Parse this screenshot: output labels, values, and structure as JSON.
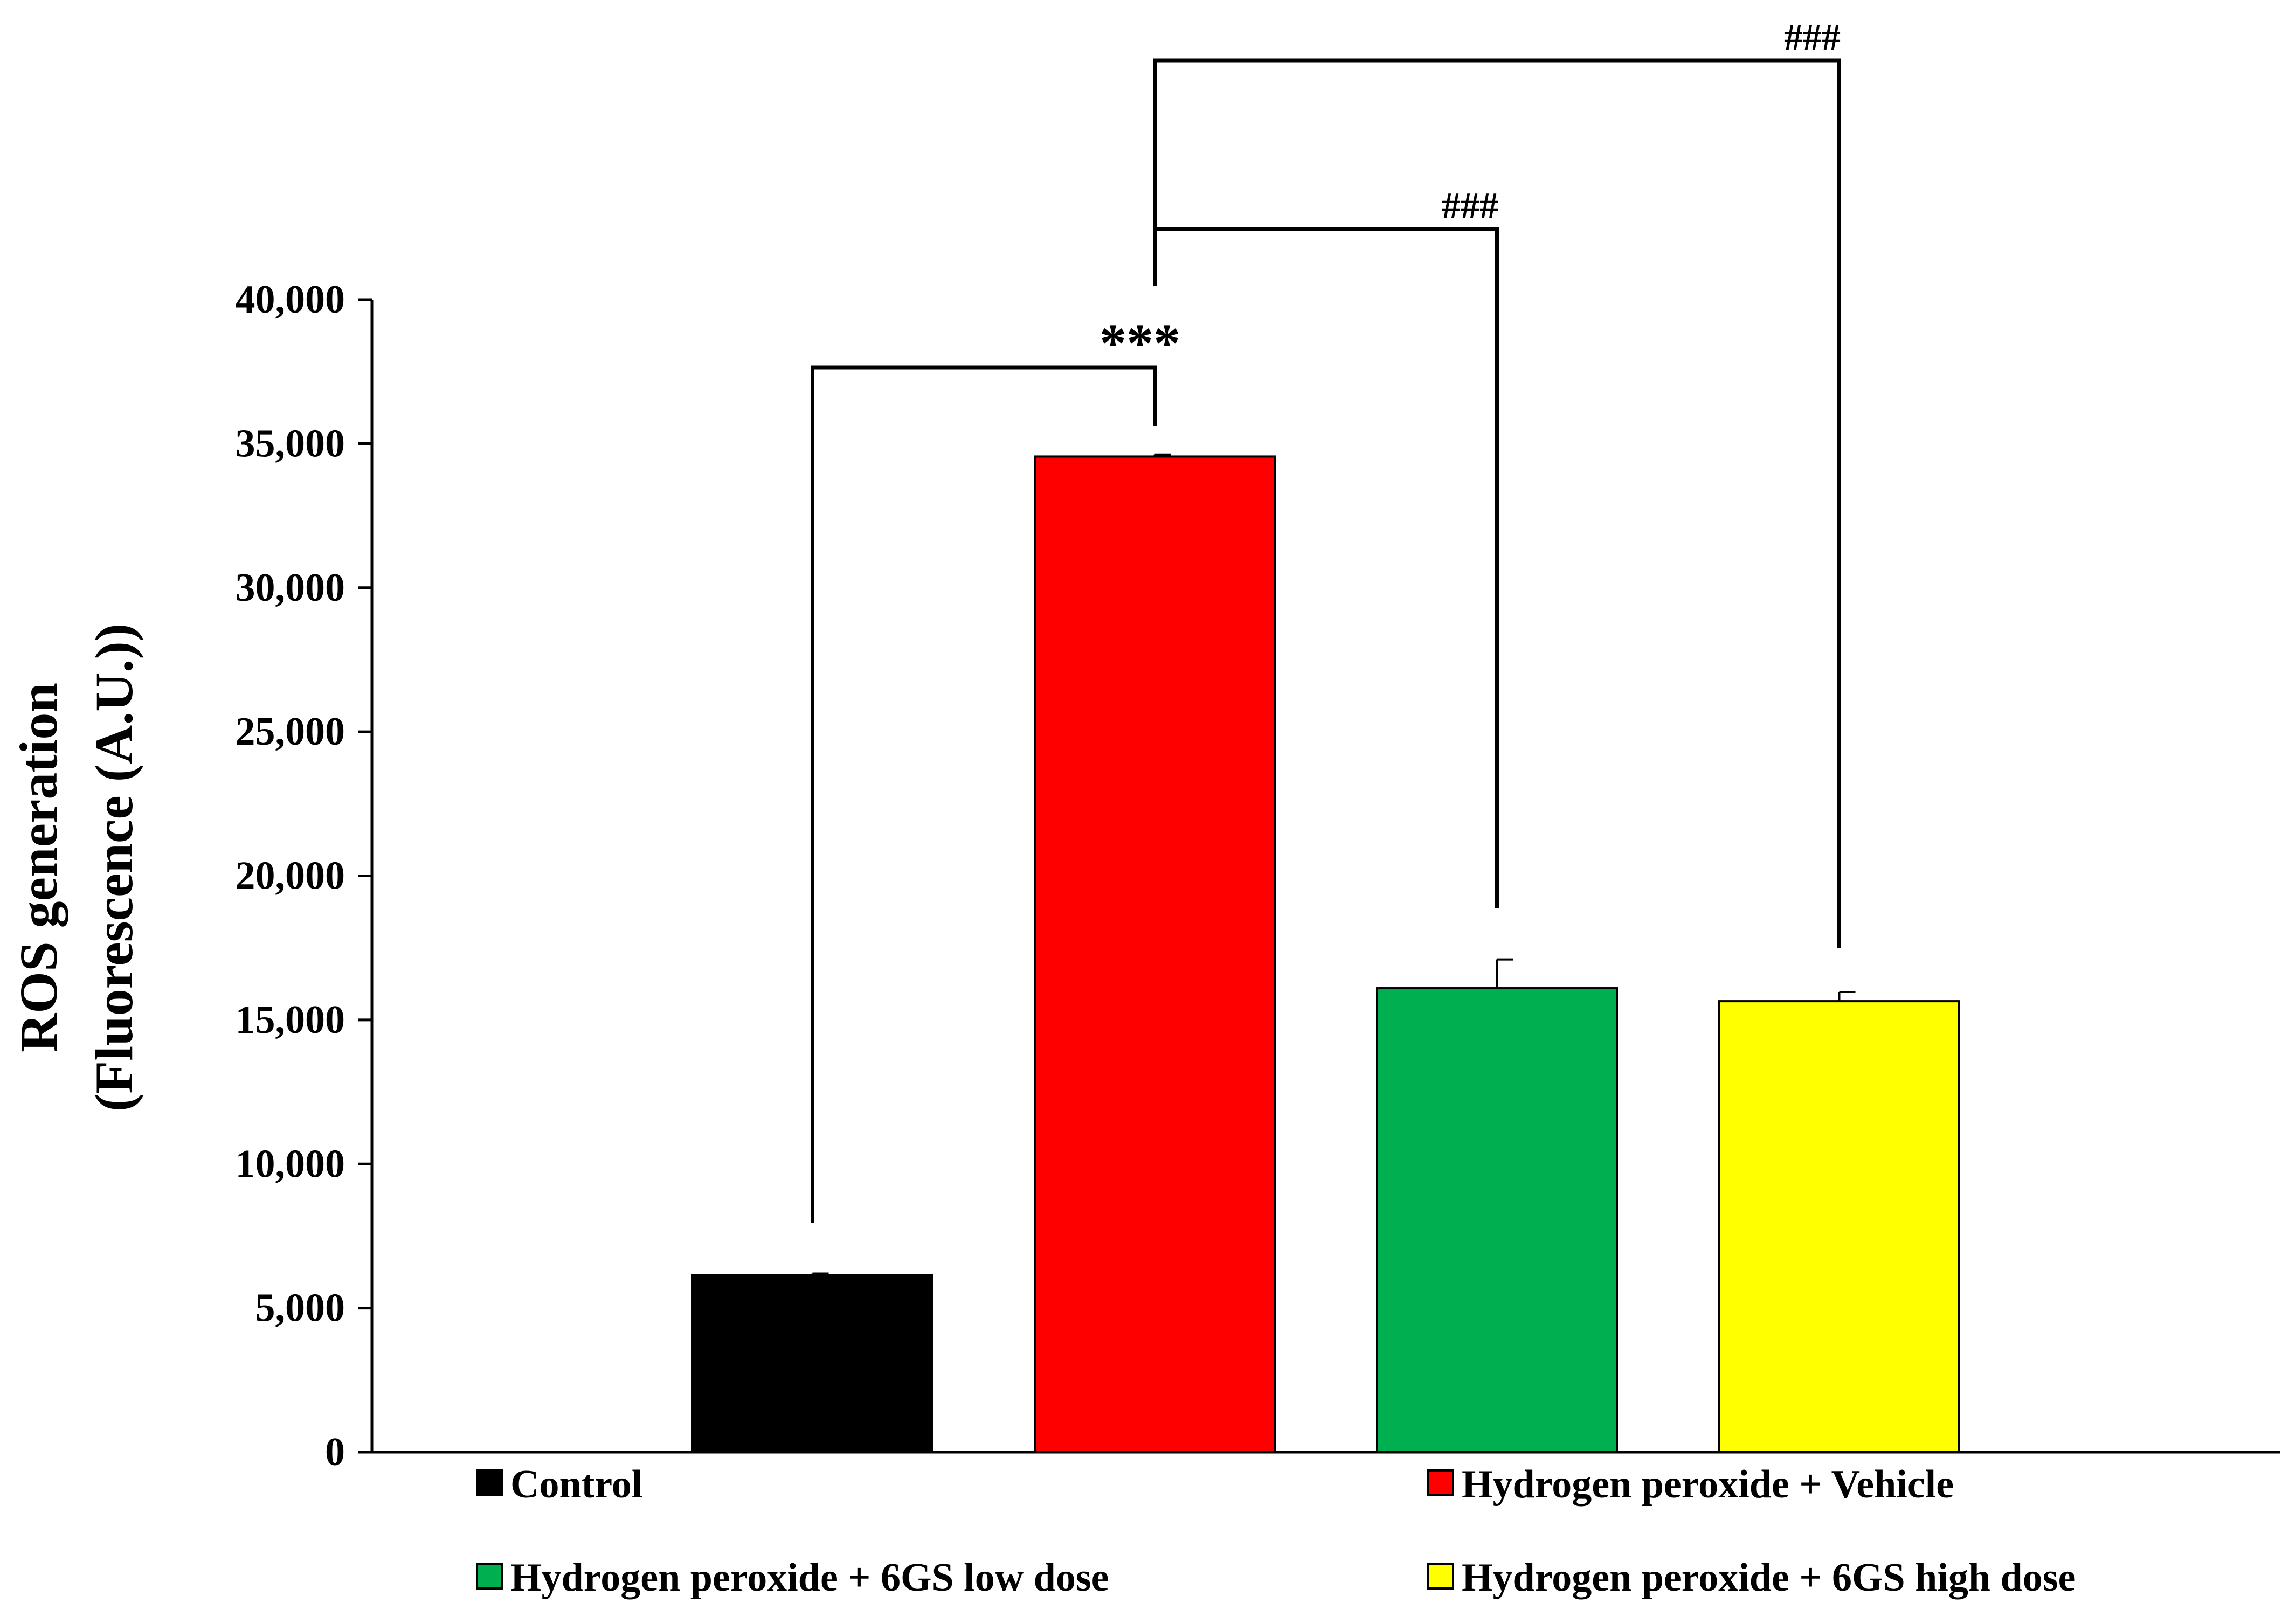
{
  "chart_data": {
    "type": "bar",
    "categories": [
      "Control",
      "Hydrogen peroxide + Vehicle",
      "Hydrogen peroxide + 6GS low dose",
      "Hydrogen peroxide + 6GS high dose"
    ],
    "values": [
      6150,
      34550,
      16100,
      15650
    ],
    "errors": [
      50,
      70,
      1000,
      320
    ],
    "colors": [
      "#000000",
      "#ff0000",
      "#00b050",
      "#ffff00"
    ],
    "ylabel_line1": "ROS generation",
    "ylabel_line2": "(Fluorescence (A.U.))",
    "ylim": [
      0,
      40000
    ],
    "yticks": [
      0,
      5000,
      10000,
      15000,
      20000,
      25000,
      30000,
      35000,
      40000
    ],
    "ytick_labels": [
      "0",
      "5,000",
      "10,000",
      "15,000",
      "20,000",
      "25,000",
      "30,000",
      "35,000",
      "40,000"
    ],
    "grid": false,
    "legend_position": "bottom",
    "significance": [
      {
        "from": 0,
        "to": 1,
        "label": "***"
      },
      {
        "from": 1,
        "to": 2,
        "label": "###"
      },
      {
        "from": 1,
        "to": 3,
        "label": "###"
      }
    ]
  }
}
